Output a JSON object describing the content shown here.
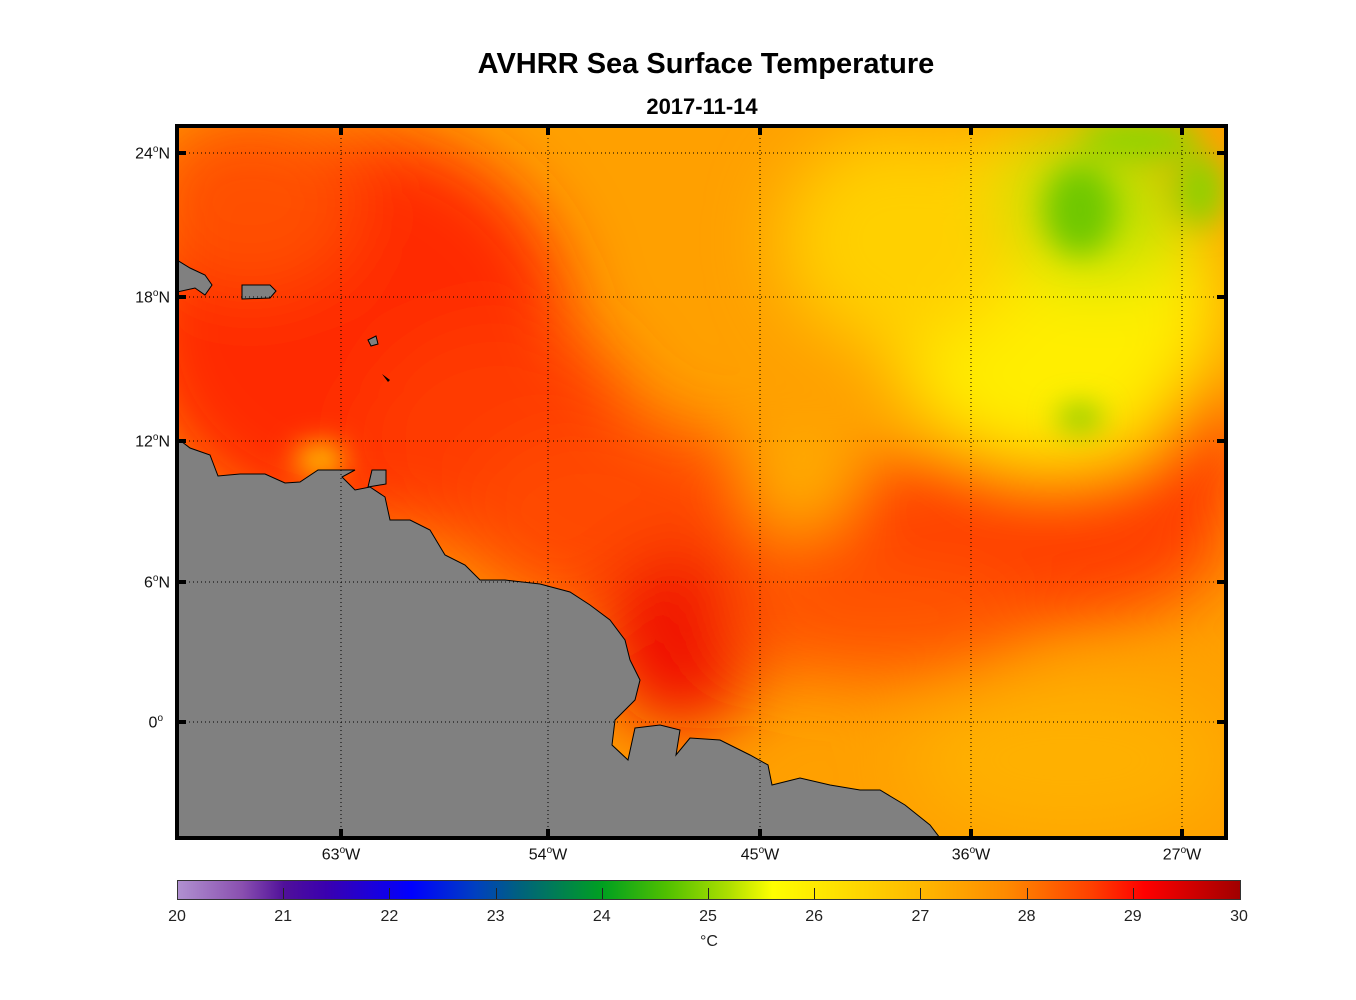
{
  "title": "AVHRR Sea Surface Temperature",
  "subtitle": "2017-11-14",
  "lat_labels": [
    "24",
    "18",
    "12",
    "6",
    "0"
  ],
  "lat_suffix": [
    "N",
    "N",
    "N",
    "N",
    ""
  ],
  "lon_labels": [
    "63",
    "54",
    "45",
    "36",
    "27"
  ],
  "lon_suffix": "W",
  "degree": "o",
  "colorbar": {
    "ticks": [
      "20",
      "21",
      "22",
      "23",
      "24",
      "25",
      "26",
      "27",
      "28",
      "29",
      "30"
    ],
    "unit": "°C",
    "range": [
      20,
      30
    ]
  },
  "colors": {
    "land": "#808080",
    "base_sst": "#ff9000"
  }
}
